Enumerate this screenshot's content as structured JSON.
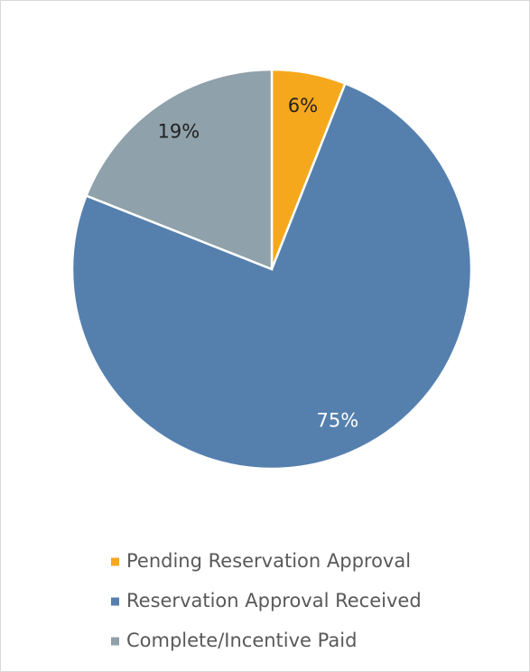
{
  "chart_data": {
    "type": "pie",
    "categories": [
      "Pending Reservation Approval",
      "Reservation Approval Received",
      "Complete/Incentive Paid"
    ],
    "values": [
      6,
      75,
      19
    ],
    "value_labels": [
      "6%",
      "75%",
      "19%"
    ],
    "colors": [
      "#f6a81c",
      "#5580ae",
      "#8fa1aa"
    ],
    "legend": "bottom"
  }
}
